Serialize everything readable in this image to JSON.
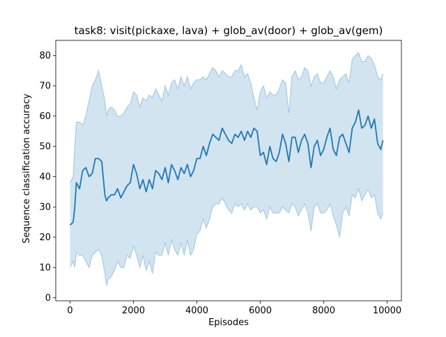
{
  "chart_data": {
    "type": "line",
    "title": "task8: visit(pickaxe, lava) + glob_av(door) + glob_av(gem)",
    "xlabel": "Episodes",
    "ylabel": "Sequence classification accuracy",
    "xlim": [
      -450,
      10450
    ],
    "ylim": [
      -1,
      85
    ],
    "xticks": [
      0,
      2000,
      4000,
      6000,
      8000,
      10000
    ],
    "xtick_labels": [
      "0",
      "2000",
      "4000",
      "6000",
      "8000",
      "10000"
    ],
    "yticks": [
      0,
      10,
      20,
      30,
      40,
      50,
      60,
      70,
      80
    ],
    "ytick_labels": [
      "0",
      "10",
      "20",
      "30",
      "40",
      "50",
      "60",
      "70",
      "80"
    ],
    "grid": false,
    "legend": "none",
    "colors": {
      "line": "#1f77b4",
      "band": "#1f77b4"
    },
    "series": [
      {
        "x": [
          0,
          100,
          150,
          200,
          300,
          400,
          500,
          600,
          700,
          800,
          900,
          1000,
          1100,
          1150,
          1200,
          1300,
          1400,
          1500,
          1600,
          1700,
          1800,
          1900,
          2000,
          2100,
          2200,
          2300,
          2400,
          2500,
          2600,
          2700,
          2800,
          2900,
          3000,
          3100,
          3200,
          3300,
          3400,
          3500,
          3600,
          3700,
          3800,
          3900,
          4000,
          4100,
          4200,
          4300,
          4400,
          4500,
          4600,
          4700,
          4800,
          4900,
          5000,
          5100,
          5200,
          5300,
          5400,
          5500,
          5600,
          5700,
          5800,
          5900,
          6000,
          6100,
          6200,
          6300,
          6400,
          6500,
          6600,
          6700,
          6800,
          6900,
          7000,
          7100,
          7200,
          7300,
          7400,
          7500,
          7600,
          7700,
          7800,
          7900,
          8000,
          8100,
          8200,
          8300,
          8400,
          8500,
          8600,
          8700,
          8800,
          8900,
          9000,
          9100,
          9200,
          9300,
          9400,
          9500,
          9600,
          9700,
          9800,
          9870
        ],
        "mean": [
          24,
          25,
          30,
          38,
          36,
          42,
          43,
          40,
          41,
          46,
          46,
          45,
          34,
          32,
          33,
          34,
          34,
          36,
          33,
          35,
          37,
          38,
          44,
          41,
          36,
          39,
          35,
          39,
          36,
          42,
          41,
          39,
          43,
          38,
          44,
          42,
          39,
          43,
          41,
          44,
          40,
          42,
          46,
          46,
          50,
          47,
          51,
          54,
          53,
          52,
          56,
          54,
          52,
          51,
          54,
          53,
          55,
          52,
          55,
          53,
          56,
          55,
          47,
          48,
          44,
          50,
          46,
          45,
          48,
          54,
          51,
          45,
          53,
          53,
          48,
          52,
          54,
          51,
          43,
          50,
          52,
          47,
          49,
          53,
          56,
          49,
          47,
          53,
          54,
          51,
          48,
          56,
          58,
          62,
          56,
          57,
          60,
          56,
          59,
          51,
          49,
          52
        ],
        "upper": [
          38,
          40,
          50,
          58,
          58,
          57,
          60,
          65,
          70,
          72,
          75,
          70,
          65,
          60,
          62,
          63,
          62,
          60,
          60,
          61,
          63,
          64,
          68,
          67,
          63,
          66,
          65,
          67,
          66,
          69,
          67,
          65,
          70,
          67,
          71,
          72,
          69,
          73,
          70,
          73,
          69,
          71,
          72,
          72,
          73,
          72,
          74,
          76,
          75,
          73,
          75,
          74,
          73,
          73,
          75,
          75,
          77,
          73,
          74,
          71,
          66,
          62,
          68,
          70,
          66,
          68,
          67,
          67,
          69,
          72,
          71,
          61,
          73,
          75,
          72,
          73,
          76,
          75,
          70,
          73,
          74,
          71,
          71,
          73,
          75,
          73,
          69,
          72,
          73,
          74,
          71,
          79,
          80,
          81,
          78,
          78,
          80,
          79,
          77,
          73,
          72,
          74
        ],
        "lower": [
          10,
          12,
          10,
          15,
          14,
          14,
          12,
          10,
          14,
          15,
          16,
          14,
          8,
          4,
          6,
          7,
          9,
          12,
          10,
          10,
          14,
          13,
          17,
          14,
          10,
          14,
          9,
          12,
          8,
          15,
          14,
          14,
          18,
          14,
          19,
          16,
          14,
          18,
          14,
          19,
          14,
          16,
          21,
          22,
          26,
          23,
          26,
          30,
          31,
          31,
          33,
          31,
          29,
          28,
          31,
          30,
          31,
          29,
          31,
          29,
          30,
          30,
          28,
          29,
          26,
          30,
          28,
          28,
          28,
          30,
          29,
          28,
          31,
          30,
          27,
          29,
          31,
          28,
          22,
          30,
          31,
          28,
          28,
          29,
          31,
          27,
          24,
          20,
          28,
          30,
          27,
          34,
          33,
          36,
          32,
          34,
          36,
          33,
          34,
          28,
          26,
          28
        ]
      }
    ]
  }
}
